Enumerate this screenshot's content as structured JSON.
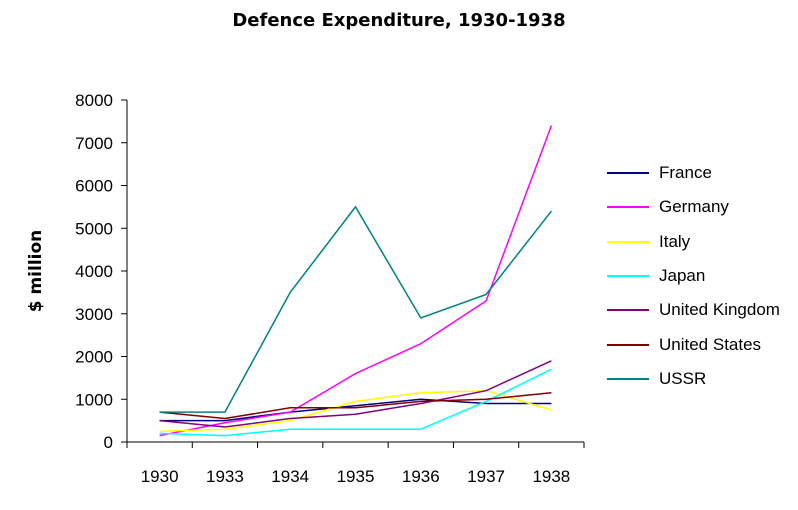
{
  "chart_data": {
    "type": "line",
    "title": "Defence Expenditure, 1930-1938",
    "xlabel": "",
    "ylabel": "$ million",
    "categories": [
      "1930",
      "1933",
      "1934",
      "1935",
      "1936",
      "1937",
      "1938"
    ],
    "ylim": [
      0,
      8000
    ],
    "yticks": [
      0,
      1000,
      2000,
      3000,
      4000,
      5000,
      6000,
      7000,
      8000
    ],
    "grid": false,
    "legend_position": "right",
    "series": [
      {
        "name": "France",
        "color": "#000080",
        "values": [
          500,
          500,
          700,
          850,
          1000,
          900,
          900
        ]
      },
      {
        "name": "Germany",
        "color": "#ff00ff",
        "values": [
          150,
          450,
          700,
          1600,
          2300,
          3300,
          7400
        ]
      },
      {
        "name": "Italy",
        "color": "#ffff00",
        "values": [
          250,
          300,
          500,
          950,
          1150,
          1200,
          750
        ]
      },
      {
        "name": "Japan",
        "color": "#00ffff",
        "values": [
          200,
          150,
          300,
          300,
          300,
          950,
          1700
        ]
      },
      {
        "name": "United Kingdom",
        "color": "#800080",
        "values": [
          500,
          350,
          550,
          650,
          900,
          1200,
          1900
        ]
      },
      {
        "name": "United States",
        "color": "#800000",
        "values": [
          700,
          550,
          800,
          800,
          950,
          1000,
          1150
        ]
      },
      {
        "name": "USSR",
        "color": "#008080",
        "values": [
          700,
          700,
          3500,
          5500,
          2900,
          3450,
          5400
        ]
      }
    ]
  }
}
